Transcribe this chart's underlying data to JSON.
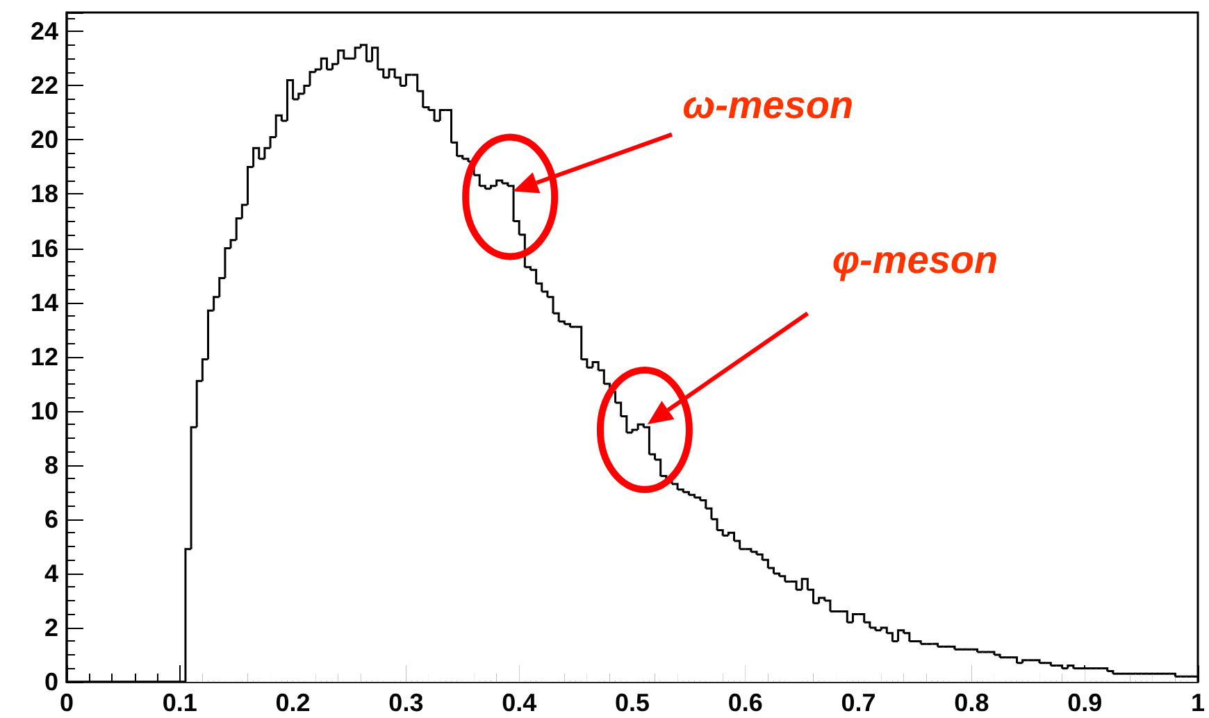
{
  "chart_data": {
    "type": "histogram",
    "bins": [
      0.105,
      0.11,
      0.115,
      0.12,
      0.125,
      0.13,
      0.135,
      0.14,
      0.145,
      0.15,
      0.155,
      0.16,
      0.165,
      0.17,
      0.175,
      0.18,
      0.185,
      0.19,
      0.195,
      0.2,
      0.205,
      0.21,
      0.215,
      0.22,
      0.225,
      0.23,
      0.235,
      0.24,
      0.245,
      0.25,
      0.255,
      0.26,
      0.265,
      0.27,
      0.275,
      0.28,
      0.285,
      0.29,
      0.295,
      0.3,
      0.305,
      0.31,
      0.315,
      0.32,
      0.325,
      0.33,
      0.335,
      0.34,
      0.345,
      0.35,
      0.355,
      0.36,
      0.365,
      0.37,
      0.375,
      0.38,
      0.385,
      0.39,
      0.395,
      0.4,
      0.405,
      0.41,
      0.415,
      0.42,
      0.425,
      0.43,
      0.435,
      0.44,
      0.445,
      0.45,
      0.455,
      0.46,
      0.465,
      0.47,
      0.475,
      0.48,
      0.485,
      0.49,
      0.495,
      0.5,
      0.505,
      0.51,
      0.515,
      0.52,
      0.525,
      0.53,
      0.535,
      0.54,
      0.545,
      0.55,
      0.555,
      0.56,
      0.565,
      0.57,
      0.575,
      0.58,
      0.585,
      0.59,
      0.595,
      0.6,
      0.605,
      0.61,
      0.615,
      0.62,
      0.625,
      0.63,
      0.635,
      0.64,
      0.645,
      0.65,
      0.655,
      0.66,
      0.665,
      0.67,
      0.675,
      0.68,
      0.685,
      0.69,
      0.695,
      0.7,
      0.705,
      0.71,
      0.715,
      0.72,
      0.725,
      0.73,
      0.735,
      0.74,
      0.745,
      0.75,
      0.755,
      0.76,
      0.765,
      0.77,
      0.775,
      0.78,
      0.785,
      0.79,
      0.795,
      0.8,
      0.805,
      0.81,
      0.815,
      0.82,
      0.825,
      0.83,
      0.835,
      0.84,
      0.845,
      0.85,
      0.855,
      0.86,
      0.865,
      0.87,
      0.875,
      0.88,
      0.885,
      0.89,
      0.895,
      0.9,
      0.905,
      0.91,
      0.915,
      0.92,
      0.925,
      0.93,
      0.935,
      0.94,
      0.945,
      0.95,
      0.955,
      0.96,
      0.965,
      0.97,
      0.975,
      0.98,
      0.985,
      0.99,
      0.995,
      1.0
    ],
    "values": [
      4.9,
      9.4,
      11.1,
      11.9,
      13.7,
      14.2,
      14.9,
      16.0,
      16.3,
      17.1,
      17.6,
      19.0,
      19.7,
      19.3,
      19.7,
      20.1,
      20.9,
      20.7,
      22.2,
      21.5,
      21.7,
      22.0,
      22.5,
      22.6,
      23.0,
      22.6,
      22.8,
      23.3,
      23.0,
      23.0,
      23.4,
      23.5,
      22.9,
      23.4,
      22.6,
      22.3,
      22.6,
      22.3,
      22.0,
      22.4,
      22.4,
      21.8,
      21.2,
      21.1,
      20.7,
      21.1,
      21.1,
      19.9,
      19.4,
      19.3,
      19.2,
      18.7,
      18.3,
      18.2,
      18.3,
      18.5,
      18.4,
      18.3,
      17.0,
      16.5,
      15.3,
      15.2,
      14.7,
      14.4,
      14.2,
      13.6,
      13.3,
      13.2,
      13.1,
      13.1,
      11.9,
      11.6,
      11.8,
      11.5,
      11.0,
      10.7,
      10.3,
      9.8,
      9.2,
      9.3,
      9.5,
      9.4,
      8.4,
      8.2,
      7.6,
      7.4,
      7.3,
      7.1,
      7.0,
      6.9,
      6.8,
      6.7,
      6.4,
      6.0,
      5.6,
      5.4,
      5.5,
      5.2,
      4.9,
      4.9,
      4.8,
      4.7,
      4.5,
      4.2,
      4.0,
      3.9,
      3.7,
      3.7,
      3.4,
      3.8,
      3.4,
      2.9,
      3.1,
      3.0,
      2.6,
      2.6,
      2.6,
      2.2,
      2.5,
      2.5,
      2.2,
      2.0,
      1.9,
      2.0,
      1.8,
      1.5,
      1.9,
      1.8,
      1.5,
      1.5,
      1.4,
      1.4,
      1.4,
      1.3,
      1.3,
      1.3,
      1.2,
      1.2,
      1.2,
      1.2,
      1.1,
      1.1,
      1.1,
      1.0,
      0.9,
      0.9,
      0.9,
      0.7,
      0.8,
      0.8,
      0.8,
      0.7,
      0.7,
      0.6,
      0.6,
      0.5,
      0.6,
      0.5,
      0.5,
      0.5,
      0.5,
      0.5,
      0.5,
      0.4,
      0.3,
      0.3,
      0.3,
      0.3,
      0.3,
      0.3,
      0.3,
      0.3,
      0.3,
      0.3,
      0.3,
      0.2,
      0.2,
      0.2,
      0.2
    ],
    "color": "#000000",
    "xlim": [
      0,
      1
    ],
    "xticks": [
      0,
      0.1,
      0.2,
      0.3,
      0.4,
      0.5,
      0.6,
      0.7,
      0.8,
      0.9,
      1
    ],
    "ylim": [
      0,
      24.7
    ],
    "yticks": [
      0,
      2,
      4,
      6,
      8,
      10,
      12,
      14,
      16,
      18,
      20,
      22,
      24
    ],
    "grid": false,
    "legend": false,
    "annotations": [
      "ω-meson",
      "φ-meson"
    ]
  }
}
